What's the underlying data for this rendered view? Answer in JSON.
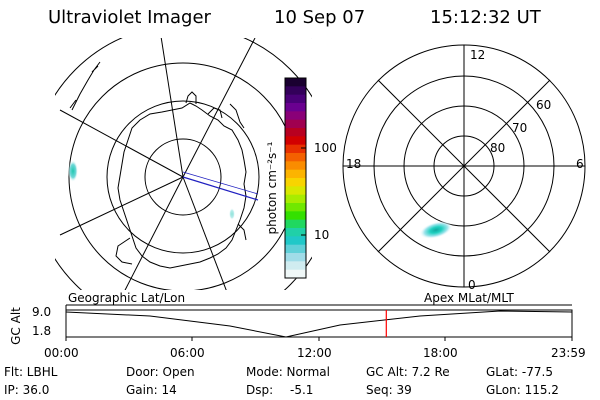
{
  "header": {
    "instrument": "Ultraviolet Imager",
    "date": "10 Sep 07",
    "time": "15:12:32 UT"
  },
  "colorbar": {
    "unit_label": "photon cm⁻²s⁻¹",
    "ticks": [
      "100",
      "10"
    ],
    "colors": [
      "#1a0030",
      "#33005a",
      "#4a0078",
      "#6a0090",
      "#8a0078",
      "#a00050",
      "#b80020",
      "#d20000",
      "#e83000",
      "#f46000",
      "#fa8c00",
      "#fcb400",
      "#f8d400",
      "#d8e800",
      "#a8ec00",
      "#70e800",
      "#34e000",
      "#20d860",
      "#20d0a8",
      "#20c8c8",
      "#60d0d8",
      "#a0dce8",
      "#d0ecf0",
      "#f0f8f8"
    ]
  },
  "left_panel": {
    "label": "Geographic Lat/Lon"
  },
  "right_panel": {
    "label": "Apex MLat/MLT",
    "mlt_labels": {
      "top": "12",
      "left": "18",
      "right": "6",
      "bottom": "0"
    },
    "mlat_labels": [
      "60",
      "70",
      "80"
    ]
  },
  "altitude_strip": {
    "axis_label": "GC Alt",
    "y_ticks": [
      "9.0",
      "1.8"
    ],
    "x_ticks": [
      "00:00",
      "06:00",
      "12:00",
      "18:00",
      "23:59"
    ],
    "current_time_fraction": 0.633,
    "colors": {
      "marker": "#ff0000"
    }
  },
  "info": {
    "row1": {
      "filter": "Flt: LBHL",
      "door": "Door: Open",
      "mode": "Mode: Normal",
      "gc_alt": "GC Alt: 7.2 Re",
      "glat": "GLat: -77.5"
    },
    "row2": {
      "ip": "IP: 36.0",
      "gain": "Gain: 14",
      "dsp_label": "Dsp:",
      "dsp_value": "-5.1",
      "seq": "Seq: 39",
      "glon": "GLon: 115.2"
    }
  }
}
